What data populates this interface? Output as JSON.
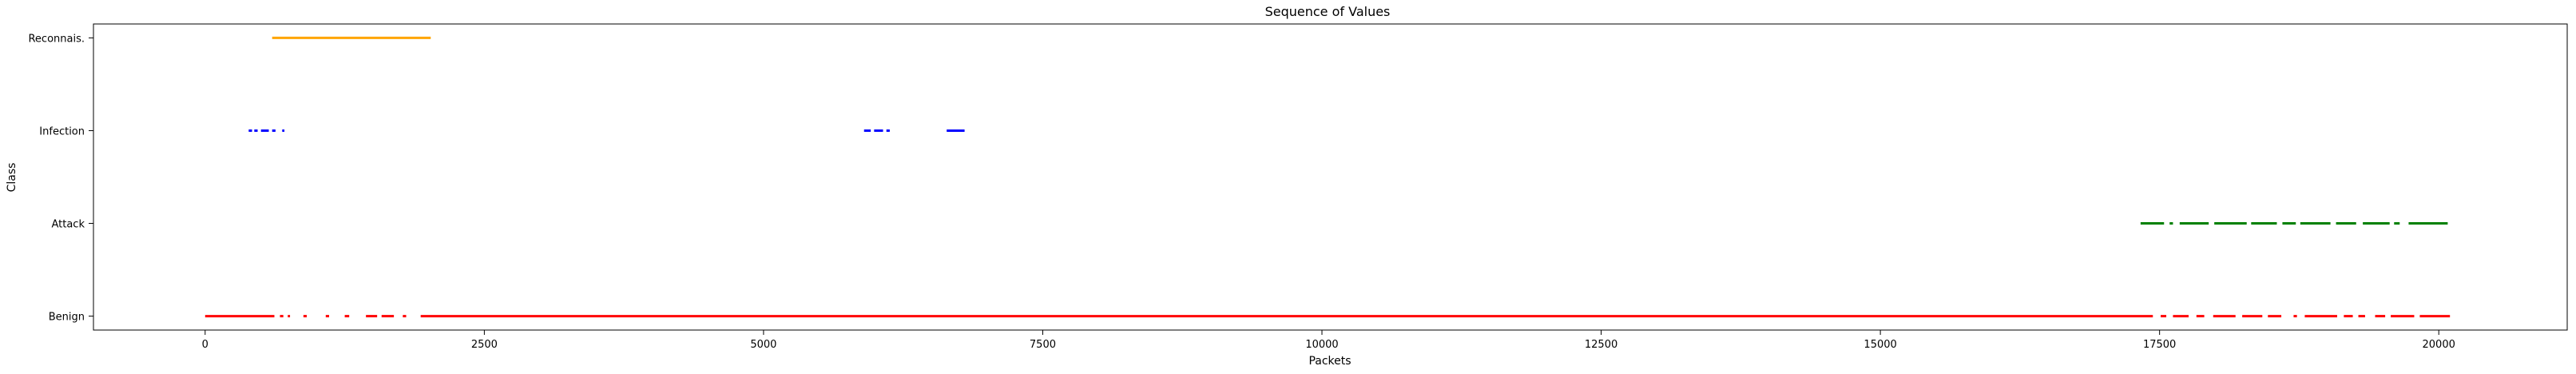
{
  "chart_data": {
    "type": "scatter",
    "title": "Sequence of Values",
    "xlabel": "Packets",
    "ylabel": "Class",
    "xlim": [
      -1000,
      21150
    ],
    "ylim": [
      -0.15,
      3.15
    ],
    "x_ticks": [
      0,
      2500,
      5000,
      7500,
      10000,
      12500,
      15000,
      17500,
      20000
    ],
    "y_categories": [
      "Benign",
      "Attack",
      "Infection",
      "Reconnais."
    ],
    "grid": false,
    "legend": "none",
    "series": [
      {
        "class": "Benign",
        "color": "#ff0000",
        "segments": [
          [
            0,
            620
          ],
          [
            670,
            700
          ],
          [
            740,
            760
          ],
          [
            880,
            910
          ],
          [
            1080,
            1110
          ],
          [
            1250,
            1290
          ],
          [
            1440,
            1540
          ],
          [
            1580,
            1690
          ],
          [
            1770,
            1800
          ],
          [
            1930,
            17440
          ],
          [
            17510,
            17560
          ],
          [
            17620,
            17760
          ],
          [
            17830,
            17900
          ],
          [
            17980,
            18180
          ],
          [
            18240,
            18420
          ],
          [
            18470,
            18590
          ],
          [
            18700,
            18730
          ],
          [
            18800,
            19090
          ],
          [
            19150,
            19230
          ],
          [
            19280,
            19340
          ],
          [
            19430,
            19520
          ],
          [
            19570,
            19780
          ],
          [
            19830,
            20100
          ]
        ]
      },
      {
        "class": "Attack",
        "color": "#008000",
        "segments": [
          [
            17330,
            17540
          ],
          [
            17590,
            17620
          ],
          [
            17680,
            17940
          ],
          [
            17990,
            18280
          ],
          [
            18320,
            18550
          ],
          [
            18600,
            18720
          ],
          [
            18760,
            19030
          ],
          [
            19080,
            19260
          ],
          [
            19320,
            19560
          ],
          [
            19600,
            19650
          ],
          [
            19730,
            20080
          ]
        ]
      },
      {
        "class": "Infection",
        "color": "#0000ff",
        "segments": [
          [
            390,
            420
          ],
          [
            440,
            470
          ],
          [
            500,
            570
          ],
          [
            600,
            630
          ],
          [
            690,
            710
          ],
          [
            5900,
            5960
          ],
          [
            5990,
            6070
          ],
          [
            6100,
            6130
          ],
          [
            6640,
            6800
          ]
        ]
      },
      {
        "class": "Reconnais.",
        "color": "#ffa500",
        "segments": [
          [
            600,
            2020
          ]
        ]
      }
    ]
  }
}
